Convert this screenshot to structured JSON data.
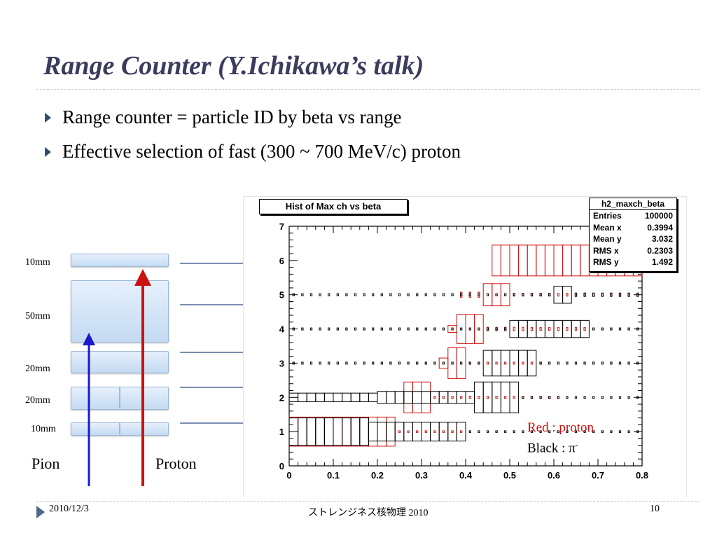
{
  "slide": {
    "title": "Range Counter (Y.Ichikawa’s talk)",
    "bullets": [
      "Range counter = particle ID by beta vs range",
      "Effective selection of  fast (300 ~ 700 MeV/c) proton"
    ],
    "colors": {
      "title": "#3c3c5e",
      "proton": "#cc1111",
      "pion": "#1a1acc",
      "slab": "#c4daf2"
    }
  },
  "diagram": {
    "layers": [
      "10mm",
      "50mm",
      "20mm",
      "20mm",
      "10mm"
    ],
    "particles": [
      "Pion",
      "Proton"
    ]
  },
  "plot": {
    "title": "Hist of Max ch  vs beta",
    "stats": {
      "name": "h2_maxch_beta",
      "rows": [
        {
          "label": "Entries",
          "value": "100000"
        },
        {
          "label": "Mean x",
          "value": "0.3994"
        },
        {
          "label": "Mean y",
          "value": "3.032"
        },
        {
          "label": "RMS x",
          "value": "0.2303"
        },
        {
          "label": "RMS y",
          "value": "1.492"
        }
      ]
    },
    "legend": {
      "red": "Red : proton",
      "black_prefix": "Black : π",
      "black_sup": "-"
    }
  },
  "chart_data": {
    "type": "heatmap",
    "title": "Hist of Max ch  vs beta",
    "xlabel": "",
    "ylabel": "",
    "xlim": [
      0,
      0.8
    ],
    "ylim": [
      0,
      7
    ],
    "x_ticks": [
      "0",
      "0.1",
      "0.2",
      "0.3",
      "0.4",
      "0.5",
      "0.6",
      "0.7",
      "0.8"
    ],
    "y_ticks": [
      "0",
      "1",
      "2",
      "3",
      "4",
      "5",
      "6",
      "7"
    ],
    "bin_width": 0.02,
    "series": [
      {
        "name": "proton",
        "color": "#cc1111",
        "rows": [
          {
            "y": 1,
            "segments": [
              [
                0.0,
                0.24,
                0.85
              ],
              [
                0.24,
                0.4,
                0.05
              ]
            ]
          },
          {
            "y": 2,
            "segments": [
              [
                0.26,
                0.32,
                0.9
              ],
              [
                0.32,
                0.62,
                0.06
              ]
            ]
          },
          {
            "y": 3,
            "segments": [
              [
                0.34,
                0.36,
                0.3
              ],
              [
                0.36,
                0.4,
                0.9
              ],
              [
                0.4,
                0.58,
                0.06
              ]
            ]
          },
          {
            "y": 4,
            "segments": [
              [
                0.36,
                0.38,
                0.2
              ],
              [
                0.38,
                0.44,
                0.85
              ],
              [
                0.44,
                0.54,
                0.1
              ],
              [
                0.54,
                0.68,
                0.08
              ]
            ]
          },
          {
            "y": 5,
            "segments": [
              [
                0.38,
                0.44,
                0.15
              ],
              [
                0.44,
                0.5,
                0.65
              ],
              [
                0.5,
                0.8,
                0.08
              ]
            ]
          },
          {
            "y": 6,
            "segments": [
              [
                0.46,
                0.8,
                0.9
              ]
            ]
          }
        ]
      },
      {
        "name": "π-",
        "color": "#000000",
        "rows": [
          {
            "y": 1,
            "segments": [
              [
                0.0,
                0.18,
                0.8
              ],
              [
                0.18,
                0.4,
                0.55
              ],
              [
                0.4,
                0.8,
                0.05
              ]
            ]
          },
          {
            "y": 2,
            "segments": [
              [
                0.0,
                0.2,
                0.25
              ],
              [
                0.2,
                0.42,
                0.35
              ],
              [
                0.42,
                0.52,
                0.9
              ],
              [
                0.52,
                0.8,
                0.05
              ]
            ]
          },
          {
            "y": 3,
            "segments": [
              [
                0.0,
                0.44,
                0.06
              ],
              [
                0.44,
                0.56,
                0.75
              ],
              [
                0.56,
                0.8,
                0.06
              ]
            ]
          },
          {
            "y": 4,
            "segments": [
              [
                0.0,
                0.5,
                0.06
              ],
              [
                0.5,
                0.68,
                0.5
              ],
              [
                0.68,
                0.8,
                0.06
              ]
            ]
          },
          {
            "y": 5,
            "segments": [
              [
                0.0,
                0.6,
                0.06
              ],
              [
                0.6,
                0.64,
                0.5
              ],
              [
                0.64,
                0.8,
                0.1
              ]
            ]
          }
        ]
      }
    ]
  },
  "footer": {
    "date": "2010/12/3",
    "center": "ストレンジネス核物理 2010",
    "page": "10"
  }
}
